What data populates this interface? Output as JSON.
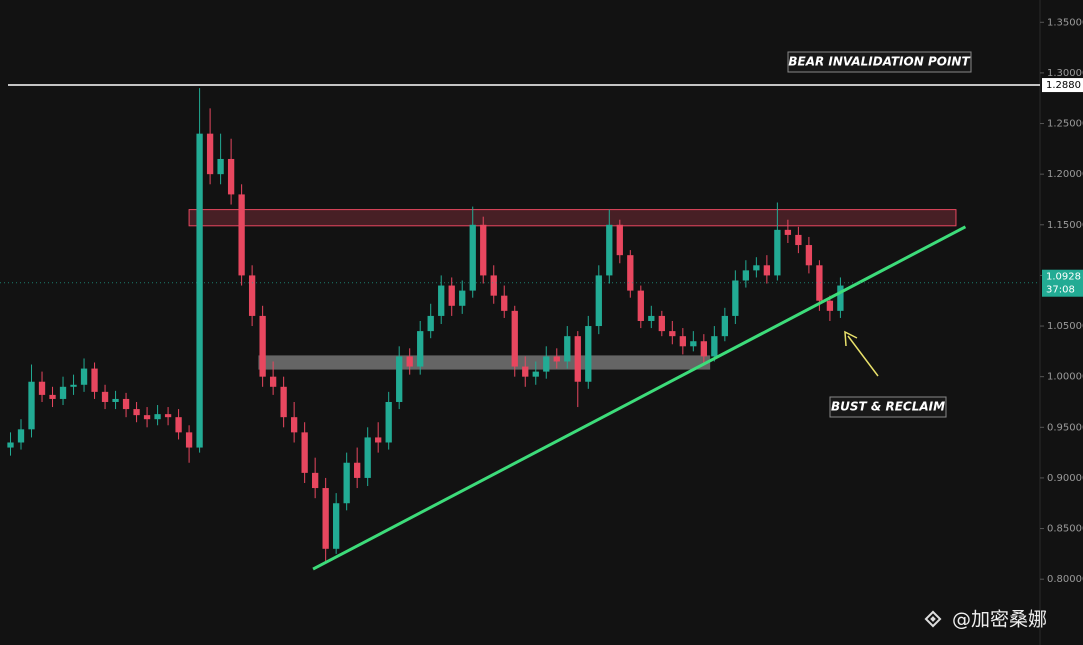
{
  "chart_data": {
    "type": "candlestick",
    "xlim": [
      -1,
      98
    ],
    "ylim": [
      0.735,
      1.372
    ],
    "yticks": [
      {
        "value": 0.8,
        "label": "0.80000"
      },
      {
        "value": 0.85,
        "label": "0.85000"
      },
      {
        "value": 0.9,
        "label": "0.90000"
      },
      {
        "value": 0.95,
        "label": "0.95000"
      },
      {
        "value": 1.0,
        "label": "1.00000"
      },
      {
        "value": 1.05,
        "label": "1.05000"
      },
      {
        "value": 1.1,
        "label": "1.10000"
      },
      {
        "value": 1.15,
        "label": "1.15000"
      },
      {
        "value": 1.2,
        "label": "1.20000"
      },
      {
        "value": 1.25,
        "label": "1.25000"
      },
      {
        "value": 1.3,
        "label": "1.30000"
      },
      {
        "value": 1.35,
        "label": "1.35000"
      }
    ],
    "up_color": "#22ab94",
    "down_color": "#e8475f",
    "open": [
      0.93,
      0.935,
      0.948,
      0.995,
      0.982,
      0.978,
      0.99,
      0.992,
      1.008,
      0.985,
      0.975,
      0.978,
      0.968,
      0.962,
      0.958,
      0.963,
      0.96,
      0.945,
      0.93,
      1.24,
      1.2,
      1.215,
      1.18,
      1.1,
      1.06,
      1.0,
      0.99,
      0.96,
      0.945,
      0.905,
      0.89,
      0.83,
      0.875,
      0.915,
      0.9,
      0.94,
      0.935,
      0.975,
      1.02,
      1.01,
      1.045,
      1.06,
      1.09,
      1.07,
      1.085,
      1.15,
      1.1,
      1.08,
      1.065,
      1.01,
      1.0,
      1.005,
      1.02,
      1.015,
      1.04,
      0.995,
      1.05,
      1.1,
      1.15,
      1.12,
      1.085,
      1.055,
      1.06,
      1.045,
      1.04,
      1.03,
      1.035,
      1.02,
      1.04,
      1.06,
      1.095,
      1.105,
      1.11,
      1.1,
      1.145,
      1.14,
      1.13,
      1.11,
      1.075,
      1.065
    ],
    "high": [
      0.945,
      0.958,
      1.012,
      1.005,
      0.99,
      1.0,
      1.002,
      1.018,
      1.014,
      0.992,
      0.986,
      0.984,
      0.975,
      0.97,
      0.972,
      0.97,
      0.968,
      0.952,
      1.285,
      1.265,
      1.24,
      1.235,
      1.19,
      1.11,
      1.07,
      1.015,
      1.0,
      0.975,
      0.955,
      0.92,
      0.9,
      0.885,
      0.925,
      0.93,
      0.95,
      0.955,
      0.985,
      1.03,
      1.028,
      1.055,
      1.072,
      1.1,
      1.098,
      1.095,
      1.168,
      1.158,
      1.11,
      1.09,
      1.07,
      1.02,
      1.015,
      1.03,
      1.028,
      1.05,
      1.045,
      1.06,
      1.11,
      1.165,
      1.155,
      1.125,
      1.09,
      1.07,
      1.065,
      1.055,
      1.048,
      1.045,
      1.042,
      1.05,
      1.068,
      1.105,
      1.115,
      1.118,
      1.12,
      1.172,
      1.155,
      1.148,
      1.138,
      1.115,
      1.08,
      1.098
    ],
    "low": [
      0.922,
      0.928,
      0.94,
      0.975,
      0.97,
      0.972,
      0.982,
      0.985,
      0.978,
      0.968,
      0.968,
      0.96,
      0.955,
      0.95,
      0.952,
      0.952,
      0.938,
      0.915,
      0.925,
      1.19,
      1.19,
      1.17,
      1.09,
      1.05,
      0.99,
      0.982,
      0.95,
      0.935,
      0.895,
      0.88,
      0.818,
      0.825,
      0.868,
      0.89,
      0.892,
      0.925,
      0.928,
      0.968,
      1.002,
      1.002,
      1.038,
      1.052,
      1.06,
      1.062,
      1.078,
      1.092,
      1.072,
      1.058,
      1.0,
      0.99,
      0.992,
      0.998,
      1.008,
      1.008,
      0.97,
      0.988,
      1.042,
      1.092,
      1.112,
      1.078,
      1.048,
      1.048,
      1.04,
      1.032,
      1.022,
      1.025,
      1.012,
      1.015,
      1.035,
      1.052,
      1.088,
      1.098,
      1.092,
      1.095,
      1.132,
      1.122,
      1.102,
      1.065,
      1.055,
      1.058
    ],
    "close": [
      0.935,
      0.948,
      0.995,
      0.982,
      0.978,
      0.99,
      0.992,
      1.008,
      0.985,
      0.975,
      0.978,
      0.968,
      0.962,
      0.958,
      0.963,
      0.96,
      0.945,
      0.93,
      1.24,
      1.2,
      1.215,
      1.18,
      1.1,
      1.06,
      1.0,
      0.99,
      0.96,
      0.945,
      0.905,
      0.89,
      0.83,
      0.875,
      0.915,
      0.9,
      0.94,
      0.935,
      0.975,
      1.02,
      1.01,
      1.045,
      1.06,
      1.09,
      1.07,
      1.085,
      1.15,
      1.1,
      1.08,
      1.065,
      1.01,
      1.0,
      1.005,
      1.02,
      1.015,
      1.04,
      0.995,
      1.05,
      1.1,
      1.15,
      1.12,
      1.085,
      1.055,
      1.06,
      1.045,
      1.04,
      1.03,
      1.035,
      1.02,
      1.04,
      1.06,
      1.095,
      1.105,
      1.11,
      1.1,
      1.145,
      1.14,
      1.13,
      1.11,
      1.075,
      1.065,
      1.09
    ],
    "invalidation_level": {
      "value": 1.288,
      "label": "1.2880",
      "color": "#ffffff"
    },
    "current_price": {
      "value": 1.0928,
      "label": "1.0928",
      "countdown": "37:08",
      "color": "#22ab94"
    },
    "resistance_zone": {
      "x": [
        17,
        90
      ],
      "y": [
        1.149,
        1.165
      ],
      "color": "#e8475f"
    },
    "support_zone": {
      "x": [
        23.6,
        66.6
      ],
      "y": [
        1.007,
        1.021
      ],
      "color": "#cccccc"
    },
    "trendline": {
      "x": [
        28.8,
        90.9
      ],
      "y": [
        0.81,
        1.148
      ],
      "color": "#3ddc7a"
    },
    "annotations": [
      "BEAR INVALIDATION POINT",
      "BUST & RECLAIM"
    ],
    "watermark": "@加密桑娜"
  }
}
